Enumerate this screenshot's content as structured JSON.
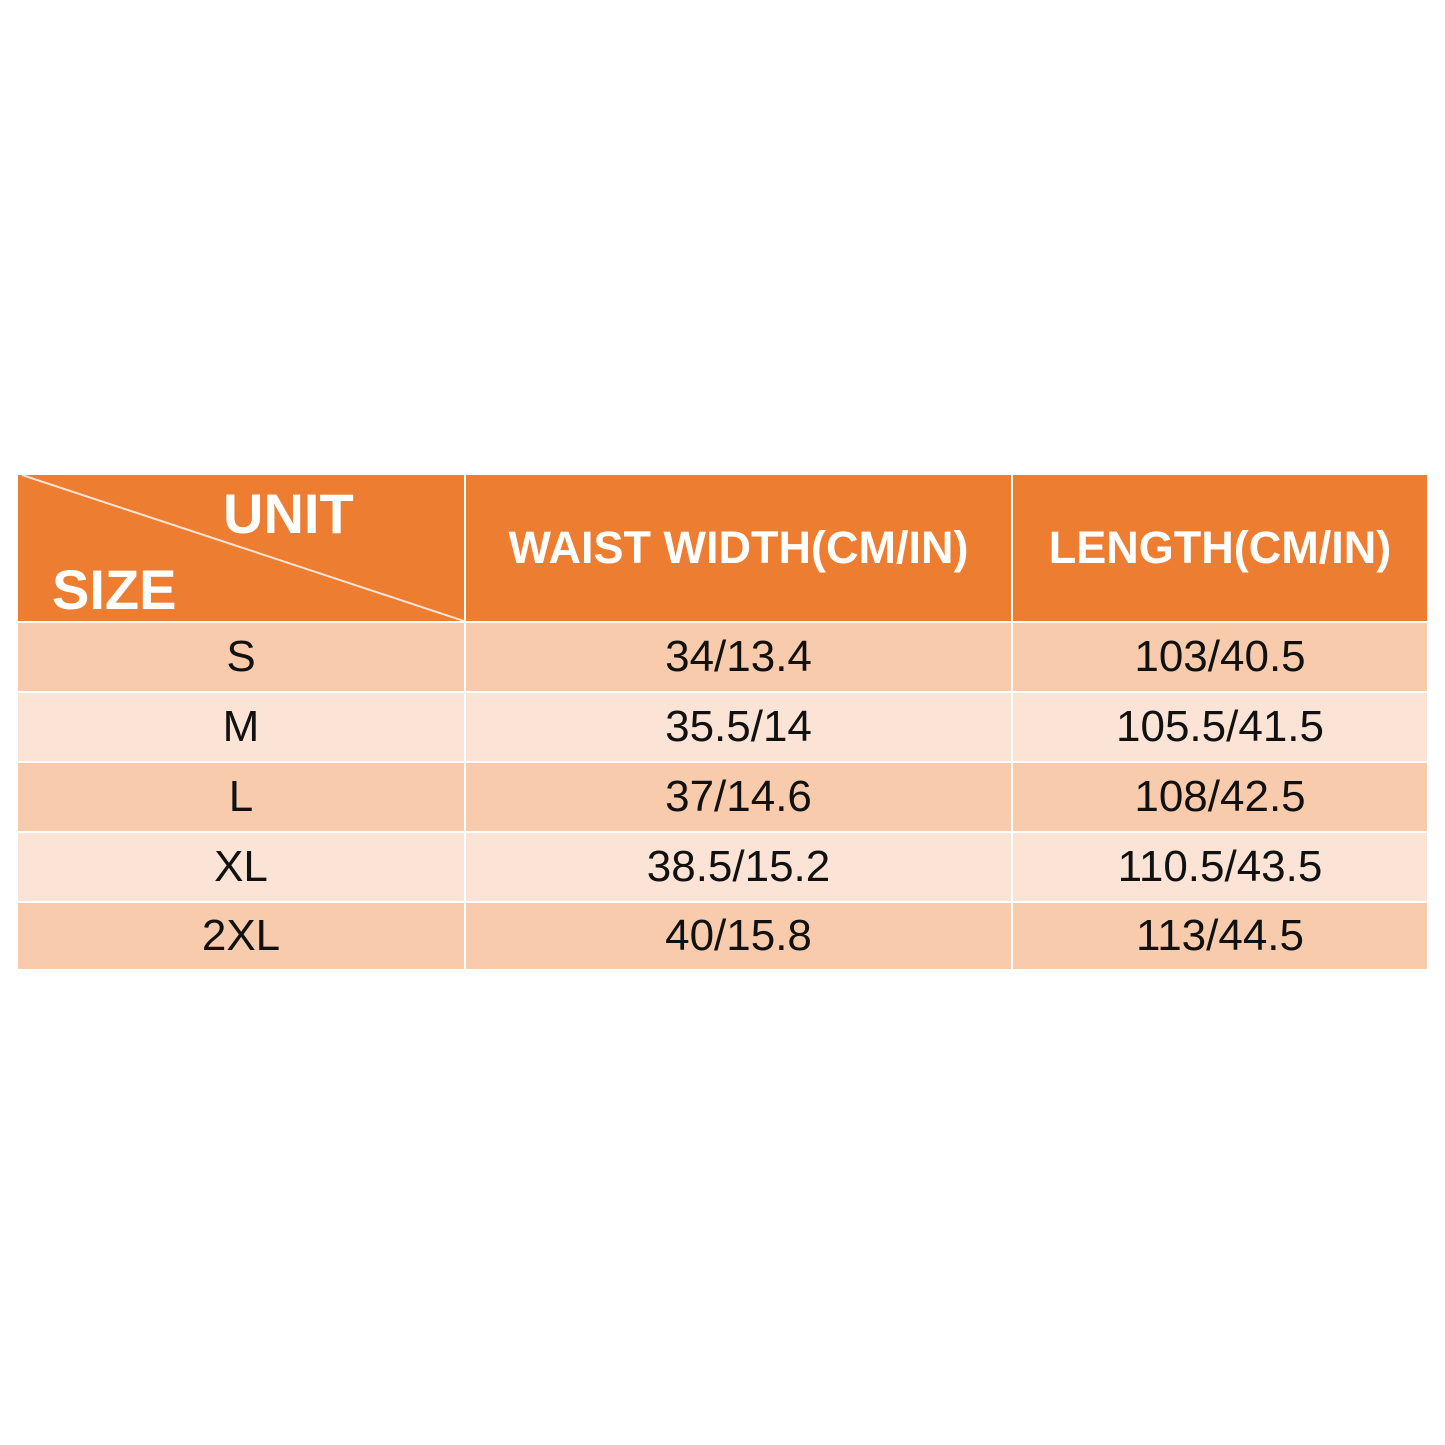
{
  "colors": {
    "header": "#ED7D31",
    "row_odd": "#F8CBAD",
    "row_even": "#FBE4D5",
    "text": "#111111"
  },
  "header": {
    "corner_top": "UNIT",
    "corner_bottom": "SIZE",
    "columns": [
      "WAIST WIDTH(CM/IN)",
      "LENGTH(CM/IN)"
    ]
  },
  "rows": [
    {
      "size": "S",
      "waist": "34/13.4",
      "length": "103/40.5"
    },
    {
      "size": "M",
      "waist": "35.5/14",
      "length": "105.5/41.5"
    },
    {
      "size": "L",
      "waist": "37/14.6",
      "length": "108/42.5"
    },
    {
      "size": "XL",
      "waist": "38.5/15.2",
      "length": "110.5/43.5"
    },
    {
      "size": "2XL",
      "waist": "40/15.8",
      "length": "113/44.5"
    }
  ]
}
